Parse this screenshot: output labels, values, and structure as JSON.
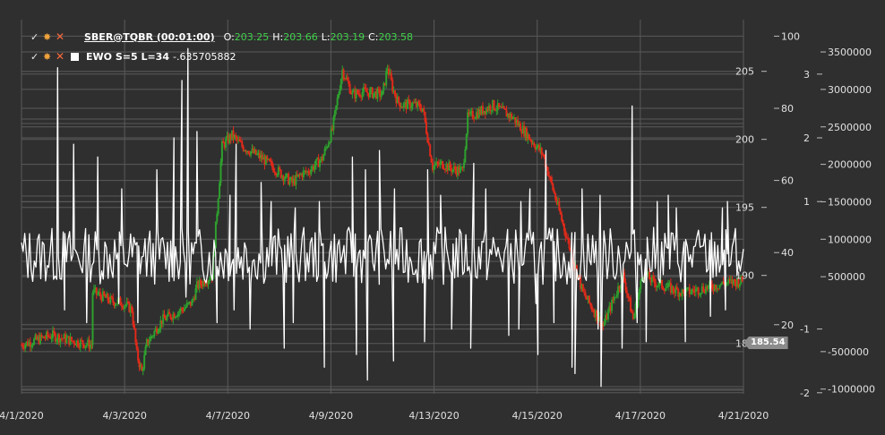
{
  "legend": {
    "main": {
      "title": "SBER@TQBR (00:01:00)",
      "o_label": "O:",
      "o_value": "203.25",
      "h_label": "H:",
      "h_value": "203.66",
      "l_label": "L:",
      "l_value": "203.19",
      "c_label": "C:",
      "c_value": "203.58"
    },
    "indicator": {
      "name": "EWO S=5 L=34",
      "value": "-.635705882"
    }
  },
  "last_price_badge": "185.54",
  "colors": {
    "background": "#2f2f2f",
    "grid": "#5a5a5a",
    "up_candle": "#2ea02e",
    "down_candle": "#e02a1a",
    "indicator_line": "#ffffff",
    "legend_value": "#3fd24a",
    "badge": "#8c8c8c"
  },
  "icons": [
    "check-icon",
    "gear-icon",
    "close-icon",
    "color-square-icon"
  ],
  "chart_data": {
    "type": "line",
    "x_tick_labels": [
      "4/1/2020",
      "4/3/2020",
      "4/7/2020",
      "4/9/2020",
      "4/13/2020",
      "4/15/2020",
      "4/17/2020",
      "4/21/2020"
    ],
    "axes": {
      "price": {
        "ticks": [
          185,
          190,
          195,
          200,
          205
        ],
        "range": [
          181.5,
          206.5
        ]
      },
      "scale_100": {
        "ticks": [
          20,
          40,
          60,
          80,
          100
        ],
        "range": [
          0,
          100
        ]
      },
      "ewo": {
        "ticks": [
          -2,
          -1,
          1,
          2,
          3
        ],
        "range": [
          -2,
          3.5
        ]
      },
      "volume": {
        "ticks": [
          -1000000,
          -500000,
          500000,
          1000000,
          1500000,
          2000000,
          2500000,
          3000000,
          3500000
        ],
        "range": [
          -1000000,
          3500000
        ]
      }
    },
    "grid": true,
    "series": [
      {
        "kind": "candlestick",
        "path_x": [
          0,
          3,
          5,
          7,
          7.1,
          9,
          10,
          11,
          11.5,
          12,
          12.5,
          14,
          16,
          17,
          17.5,
          19,
          20,
          21,
          22,
          24,
          27,
          28,
          28.5,
          30,
          31,
          32,
          33,
          34,
          36,
          36.5,
          37,
          37.5,
          38,
          39,
          40,
          41,
          42,
          43,
          44,
          44.5,
          47,
          49,
          52,
          55,
          56,
          58,
          60,
          61,
          62,
          63,
          66,
          70,
          72
        ],
        "path_price": [
          184.9,
          185.6,
          185.2,
          184.9,
          188.8,
          188.1,
          188.0,
          187.5,
          184.2,
          182.9,
          185.0,
          186.7,
          187.5,
          188.0,
          189.2,
          190.0,
          199.5,
          200.3,
          199.5,
          198.6,
          196.8,
          197.5,
          197.6,
          198.6,
          200.7,
          205.1,
          203.3,
          203.5,
          203.3,
          205.3,
          203.8,
          202.8,
          202.5,
          202.6,
          202.3,
          198.0,
          198.2,
          197.8,
          197.7,
          201.6,
          202.5,
          201.6,
          198.9,
          191.2,
          188.7,
          186.3,
          190.0,
          186.8,
          190.2,
          189.5,
          188.7,
          189.4,
          189.6
        ]
      },
      {
        "kind": "line",
        "name": "EWO S=5 L=34",
        "spikes": [
          [
            3.6,
            3.1
          ],
          [
            5.2,
            1.9
          ],
          [
            7.6,
            1.7
          ],
          [
            10,
            1.2
          ],
          [
            13.5,
            1.5
          ],
          [
            15.2,
            2.0
          ],
          [
            15.9,
            1.4
          ],
          [
            16,
            2.9
          ],
          [
            16.6,
            3.4
          ],
          [
            17.5,
            2.1
          ],
          [
            20.8,
            1.1
          ],
          [
            21.4,
            1.9
          ],
          [
            23.9,
            1.3
          ],
          [
            24.9,
            1.0
          ],
          [
            27.3,
            0.9
          ],
          [
            29.7,
            1.0
          ],
          [
            33,
            1.7
          ],
          [
            34.3,
            1.5
          ],
          [
            35.7,
            1.8
          ],
          [
            37.2,
            1.2
          ],
          [
            40.5,
            1.5
          ],
          [
            41.8,
            1.1
          ],
          [
            45.1,
            1.6
          ],
          [
            46.3,
            1.2
          ],
          [
            49.8,
            1.0
          ],
          [
            50.7,
            1.2
          ],
          [
            52.3,
            1.8
          ],
          [
            55.9,
            1.2
          ],
          [
            57.7,
            1.1
          ],
          [
            60.9,
            2.5
          ],
          [
            63.4,
            1.0
          ],
          [
            64.5,
            1.1
          ],
          [
            65.3,
            0.9
          ],
          [
            69.9,
            0.9
          ],
          [
            70.4,
            1.0
          ]
        ],
        "dips": [
          [
            4.3,
            -0.7
          ],
          [
            6.5,
            -0.9
          ],
          [
            9.7,
            -0.6
          ],
          [
            11.6,
            -0.9
          ],
          [
            16.4,
            -0.5
          ],
          [
            19.5,
            -0.9
          ],
          [
            21.2,
            -0.7
          ],
          [
            22.8,
            -1.0
          ],
          [
            26.2,
            -1.3
          ],
          [
            27.1,
            -0.9
          ],
          [
            30.2,
            -1.6
          ],
          [
            33.4,
            -1.4
          ],
          [
            34.5,
            -1.8
          ],
          [
            37.1,
            -1.5
          ],
          [
            40.2,
            -1.2
          ],
          [
            42.9,
            -1.0
          ],
          [
            44.8,
            -1.3
          ],
          [
            48.6,
            -1.1
          ],
          [
            49.6,
            -1.0
          ],
          [
            51.3,
            -0.6
          ],
          [
            51.5,
            -1.4
          ],
          [
            53.1,
            -0.9
          ],
          [
            54.9,
            -1.6
          ],
          [
            55.2,
            -1.7
          ],
          [
            57.5,
            -1.0
          ],
          [
            57.8,
            -1.9
          ],
          [
            59.9,
            -1.3
          ],
          [
            61.4,
            -0.9
          ],
          [
            62.3,
            -1.2
          ],
          [
            66.2,
            -1.2
          ],
          [
            68.7,
            -0.8
          ],
          [
            70.2,
            -0.7
          ]
        ]
      }
    ]
  }
}
